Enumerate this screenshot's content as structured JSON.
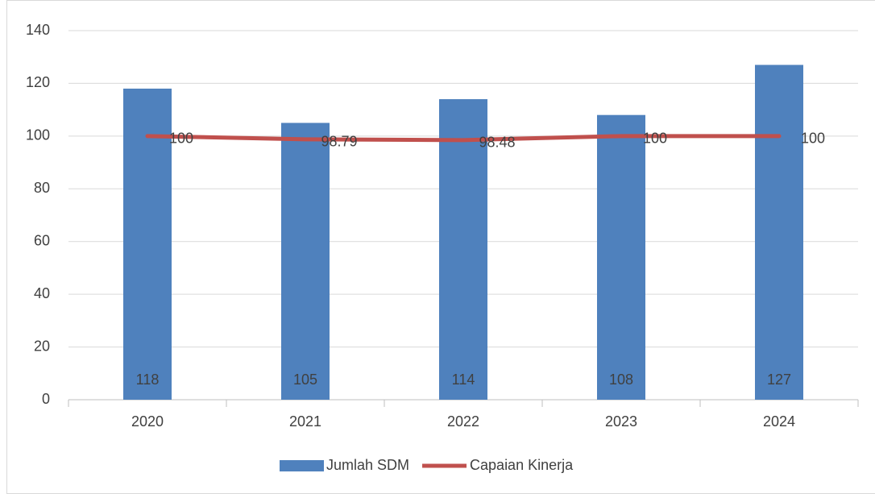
{
  "chart_data": {
    "type": "combo",
    "categories": [
      "2020",
      "2021",
      "2022",
      "2023",
      "2024"
    ],
    "series": [
      {
        "name": "Jumlah SDM",
        "type": "bar",
        "color": "#4f81bd",
        "values": [
          118,
          105,
          114,
          108,
          127
        ]
      },
      {
        "name": "Capaian Kinerja",
        "type": "line",
        "color": "#c0504d",
        "values": [
          100,
          98.79,
          98.48,
          100,
          100
        ]
      }
    ],
    "ylim": [
      0,
      140
    ],
    "yticks": [
      0,
      20,
      40,
      60,
      80,
      100,
      120,
      140
    ],
    "grid": true,
    "legend": "bottom"
  }
}
